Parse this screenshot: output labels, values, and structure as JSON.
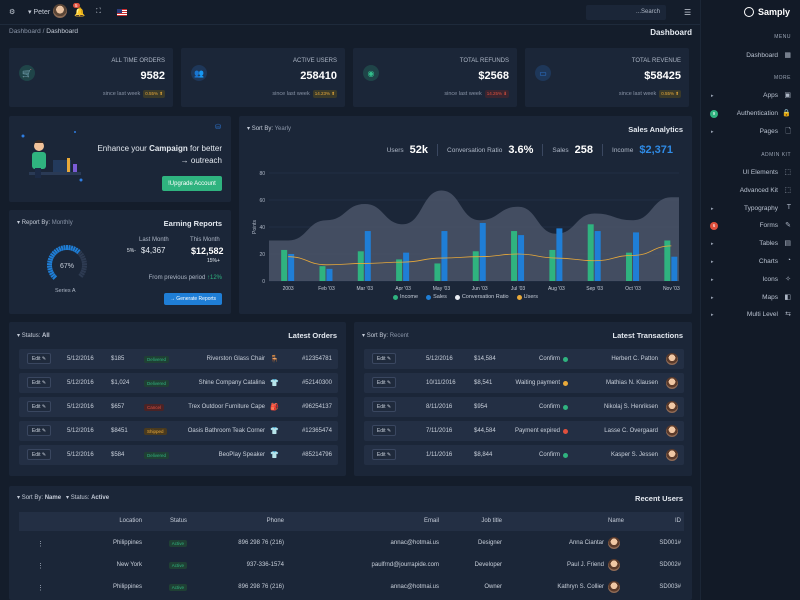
{
  "topbar": {
    "user": "Peter",
    "notif_count": "5",
    "search_placeholder": "...Search",
    "gear_icon": "gear-icon",
    "menu_icon": "hamburger-icon"
  },
  "breadcrumb": {
    "root": "Dashboard",
    "sep": "/",
    "current": "Dashboard"
  },
  "page_title": "Dashboard",
  "brand": "Samply",
  "stats": [
    {
      "title": "ALL TIME ORDERS",
      "value": "9582",
      "since": "since last week",
      "badge": "0.55% ⬆",
      "icon": "cart-icon",
      "color": "#33c08d"
    },
    {
      "title": "ACTIVE USERS",
      "value": "258410",
      "since": "since last week",
      "badge": "14.23% ⬆",
      "icon": "users-icon",
      "color": "#2f7de1"
    },
    {
      "title": "TOTAL REFUNDS",
      "value": "$2568",
      "since": "since last week",
      "badge": "14.25% ⬇",
      "icon": "refund-icon",
      "color": "#33c08d"
    },
    {
      "title": "TOTAL REVENUE",
      "value": "$58425",
      "since": "since last week",
      "badge": "0.55% ⬆",
      "icon": "cash-icon",
      "color": "#2f7de1"
    }
  ],
  "campaign": {
    "pre": "Enhance your",
    "bold": "Campaign",
    "post": "for better",
    "line2": "→ outreach",
    "button": "!Upgrade Account"
  },
  "earning": {
    "reportby": "Report By:",
    "reportby_val": "Monthly",
    "title": "Earning Reports",
    "gauge_pct": "67%",
    "gauge_value": 0.67,
    "series": "Series A",
    "last_month_label": "Last Month",
    "last_month_val": "$4,367",
    "last_month_pct": "5%-",
    "this_month_label": "This Month",
    "this_month_val": "$12,582",
    "this_month_pct": "15%+",
    "prev_label": "From previous period",
    "prev_val": "↑12%",
    "button": "→ Generate Reports"
  },
  "analytics": {
    "sortby": "Sort By:",
    "sortby_val": "Yearly",
    "title": "Sales Analytics",
    "kpis": [
      {
        "label": "Users",
        "value": "52k"
      },
      {
        "label": "Conversation Ratio",
        "value": "3.6%"
      },
      {
        "label": "Sales",
        "value": "258"
      },
      {
        "label": "Income",
        "value": "$2,371"
      }
    ],
    "legend": [
      {
        "name": "Income",
        "color": "#2fb37f"
      },
      {
        "name": "Sales",
        "color": "#1f7ed6"
      },
      {
        "name": "Conversation Ratio",
        "color": "#e9edf3"
      },
      {
        "name": "Users",
        "color": "#e8a93a"
      }
    ]
  },
  "chart_data": {
    "type": "bar",
    "ylabel": "Points",
    "ylim": [
      0,
      80
    ],
    "yticks": [
      "0",
      "20",
      "40",
      "60",
      "80"
    ],
    "categories": [
      "2003",
      "Feb '03",
      "Mar '03",
      "Apr '03",
      "May '03",
      "Jun '03",
      "Jul '03",
      "Aug '03",
      "Sep '03",
      "Oct '03",
      "Nov '03"
    ],
    "series": [
      {
        "name": "Income",
        "type": "bar",
        "color": "#2fb37f",
        "values": [
          23,
          11,
          22,
          16,
          13,
          22,
          37,
          23,
          42,
          21,
          30
        ]
      },
      {
        "name": "Sales",
        "type": "bar",
        "color": "#1f7ed6",
        "values": [
          20,
          9,
          37,
          21,
          37,
          43,
          34,
          39,
          37,
          36,
          18
        ]
      },
      {
        "name": "Conversation Ratio",
        "type": "area",
        "color": "#4a5568",
        "values": [
          30,
          45,
          57,
          42,
          67,
          45,
          55,
          35,
          50,
          45,
          62
        ]
      },
      {
        "name": "Users",
        "type": "line",
        "color": "#e8a93a",
        "values": [
          18,
          12,
          13,
          14,
          17,
          18,
          20,
          17,
          15,
          19,
          26
        ]
      }
    ]
  },
  "orders": {
    "status": "Status:",
    "status_val": "All",
    "title": "Latest Orders",
    "rows": [
      {
        "edit": "Edit ✎",
        "date": "5/12/2016",
        "price": "$185",
        "status": "Delivered",
        "product": "Riverston Glass Chair",
        "id": "#12354781"
      },
      {
        "edit": "Edit ✎",
        "date": "5/12/2016",
        "price": "$1,024",
        "status": "Delivered",
        "product": "Shine Company Catalina",
        "id": "#52140300"
      },
      {
        "edit": "Edit ✎",
        "date": "5/12/2016",
        "price": "$657",
        "status": "Cancel",
        "product": "Trex Outdoor Furniture Cape",
        "id": "#96254137"
      },
      {
        "edit": "Edit ✎",
        "date": "5/12/2016",
        "price": "$8451",
        "status": "Shipped",
        "product": "Oasis Bathroom Teak Corner",
        "id": "#12365474"
      },
      {
        "edit": "Edit ✎",
        "date": "5/12/2016",
        "price": "$584",
        "status": "Delivered",
        "product": "BeoPlay Speaker",
        "id": "#85214796"
      }
    ]
  },
  "transactions": {
    "sortby": "Sort By:",
    "sortby_val": "Recent",
    "title": "Latest Transactions",
    "rows": [
      {
        "edit": "Edit ✎",
        "date": "5/12/2016",
        "amount": "$14,584",
        "status": "Confirm",
        "dot": "#2fb37f",
        "name": "Herbert C. Patton"
      },
      {
        "edit": "Edit ✎",
        "date": "10/11/2016",
        "amount": "$8,541",
        "status": "Waiting payment",
        "dot": "#e8a93a",
        "name": "Mathias N. Klausen"
      },
      {
        "edit": "Edit ✎",
        "date": "8/11/2016",
        "amount": "$954",
        "status": "Confirm",
        "dot": "#2fb37f",
        "name": "Nikolaj S. Henriksen"
      },
      {
        "edit": "Edit ✎",
        "date": "7/11/2016",
        "amount": "$44,584",
        "status": "Payment expired",
        "dot": "#e0503d",
        "name": "Lasse C. Overgaard"
      },
      {
        "edit": "Edit ✎",
        "date": "1/11/2016",
        "amount": "$8,844",
        "status": "Confirm",
        "dot": "#2fb37f",
        "name": "Kasper S. Jessen"
      }
    ]
  },
  "users": {
    "sortby": "Sort By:",
    "sortby_val": "Name",
    "status": "Status:",
    "status_val": "Active",
    "title": "Recent Users",
    "headers": [
      "Location",
      "Status",
      "Phone",
      "Email",
      "Job title",
      "Name",
      "ID"
    ],
    "rows": [
      {
        "location": "Philippines",
        "status": "Active",
        "phone": "896 298 76 (216)",
        "email": "annac@hotmai.us",
        "job": "Designer",
        "name": "Anna Ciantar",
        "id": "SD001#"
      },
      {
        "location": "New York",
        "status": "Active",
        "phone": "937-336-1574",
        "email": "paulfrnd@jourrapide.com",
        "job": "Developer",
        "name": "Paul J. Friend",
        "id": "SD002#"
      },
      {
        "location": "Philippines",
        "status": "Active",
        "phone": "896 298 76 (216)",
        "email": "annac@hotmai.us",
        "job": "Owner",
        "name": "Kathryn S. Collier",
        "id": "SD003#"
      }
    ]
  },
  "sidebar": {
    "menu_head": "MENU",
    "dashboard": "Dashboard",
    "more_head": "MORE",
    "adminkit_head": "ADMIN KIT",
    "more": [
      {
        "label": "Apps",
        "arrow": true,
        "badge": ""
      },
      {
        "label": "Authentication",
        "arrow": false,
        "badge": "9"
      },
      {
        "label": "Pages",
        "arrow": true,
        "badge": ""
      }
    ],
    "admin": [
      {
        "label": "UI Elements",
        "arrow": false,
        "badge": ""
      },
      {
        "label": "Advanced Kit",
        "arrow": false,
        "badge": ""
      },
      {
        "label": "Typography",
        "arrow": true,
        "badge": ""
      },
      {
        "label": "Forms",
        "arrow": false,
        "badge": "6"
      },
      {
        "label": "Tables",
        "arrow": true,
        "badge": ""
      },
      {
        "label": "Charts",
        "arrow": true,
        "badge": ""
      },
      {
        "label": "Icons",
        "arrow": true,
        "badge": ""
      },
      {
        "label": "Maps",
        "arrow": true,
        "badge": ""
      },
      {
        "label": "Multi Level",
        "arrow": true,
        "badge": ""
      }
    ]
  }
}
